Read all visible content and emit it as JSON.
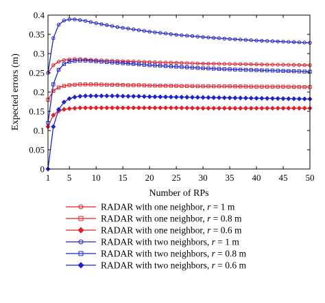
{
  "chart_data": {
    "type": "line",
    "xlabel": "Number of RPs",
    "ylabel": "Expected errors (m)",
    "xlim": [
      1,
      50
    ],
    "ylim": [
      0,
      0.4
    ],
    "xticks": [
      "1",
      "5",
      "10",
      "15",
      "20",
      "25",
      "30",
      "35",
      "40",
      "45",
      "50"
    ],
    "yticks": [
      "0",
      "0.05",
      "0.1",
      "0.15",
      "0.2",
      "0.25",
      "0.3",
      "0.35",
      "0.4"
    ],
    "legend_position": "bottom",
    "grid": false,
    "x": [
      1,
      2,
      3,
      4,
      5,
      6,
      7,
      8,
      9,
      10,
      12,
      14,
      16,
      18,
      20,
      25,
      30,
      35,
      40,
      45,
      50
    ],
    "series": [
      {
        "name": "RADAR with one neighbor, r = 1 m",
        "legend_parts": [
          "RADAR with one neighbor, ",
          "r",
          " = 1 m"
        ],
        "color": "#e0202a",
        "marker": "circle",
        "values": [
          0.25,
          0.27,
          0.279,
          0.283,
          0.285,
          0.286,
          0.286,
          0.285,
          0.284,
          0.283,
          0.282,
          0.281,
          0.28,
          0.279,
          0.278,
          0.276,
          0.274,
          0.273,
          0.272,
          0.271,
          0.27
        ]
      },
      {
        "name": "RADAR with one neighbor, r = 0.8 m",
        "legend_parts": [
          "RADAR with one neighbor, ",
          "r",
          " = 0.8 m"
        ],
        "color": "#e0202a",
        "marker": "square",
        "values": [
          0.18,
          0.203,
          0.212,
          0.216,
          0.218,
          0.219,
          0.22,
          0.22,
          0.22,
          0.22,
          0.219,
          0.219,
          0.218,
          0.218,
          0.217,
          0.216,
          0.215,
          0.215,
          0.214,
          0.214,
          0.213
        ]
      },
      {
        "name": "RADAR with one neighbor, r = 0.6 m",
        "legend_parts": [
          "RADAR with one neighbor, ",
          "r",
          " = 0.6 m"
        ],
        "color": "#e0202a",
        "marker": "diamond",
        "values": [
          0.11,
          0.14,
          0.151,
          0.155,
          0.157,
          0.158,
          0.159,
          0.159,
          0.159,
          0.159,
          0.159,
          0.159,
          0.159,
          0.159,
          0.159,
          0.159,
          0.158,
          0.158,
          0.158,
          0.158,
          0.158
        ]
      },
      {
        "name": "RADAR with two neighbors, r = 1 m",
        "legend_parts": [
          "RADAR with two neighbors, ",
          "r",
          " = 1 m"
        ],
        "color": "#1f24c8",
        "marker": "circle",
        "values": [
          0.25,
          0.34,
          0.375,
          0.386,
          0.389,
          0.389,
          0.387,
          0.385,
          0.382,
          0.379,
          0.374,
          0.369,
          0.365,
          0.361,
          0.357,
          0.349,
          0.343,
          0.338,
          0.334,
          0.331,
          0.328
        ]
      },
      {
        "name": "RADAR with two neighbors, r = 0.8 m",
        "legend_parts": [
          "RADAR with two neighbors, ",
          "r",
          " = 0.8 m"
        ],
        "color": "#1f24c8",
        "marker": "square",
        "values": [
          0.12,
          0.22,
          0.258,
          0.273,
          0.279,
          0.281,
          0.282,
          0.282,
          0.281,
          0.28,
          0.278,
          0.276,
          0.274,
          0.272,
          0.27,
          0.266,
          0.262,
          0.259,
          0.257,
          0.255,
          0.253
        ]
      },
      {
        "name": "RADAR with two neighbors, r = 0.6 m",
        "legend_parts": [
          "RADAR with two neighbors, ",
          "r",
          " = 0.6 m"
        ],
        "color": "#1f24c8",
        "marker": "diamond",
        "values": [
          0.0,
          0.11,
          0.155,
          0.174,
          0.183,
          0.187,
          0.189,
          0.19,
          0.19,
          0.19,
          0.19,
          0.19,
          0.189,
          0.189,
          0.188,
          0.187,
          0.186,
          0.185,
          0.184,
          0.183,
          0.182
        ]
      }
    ]
  }
}
